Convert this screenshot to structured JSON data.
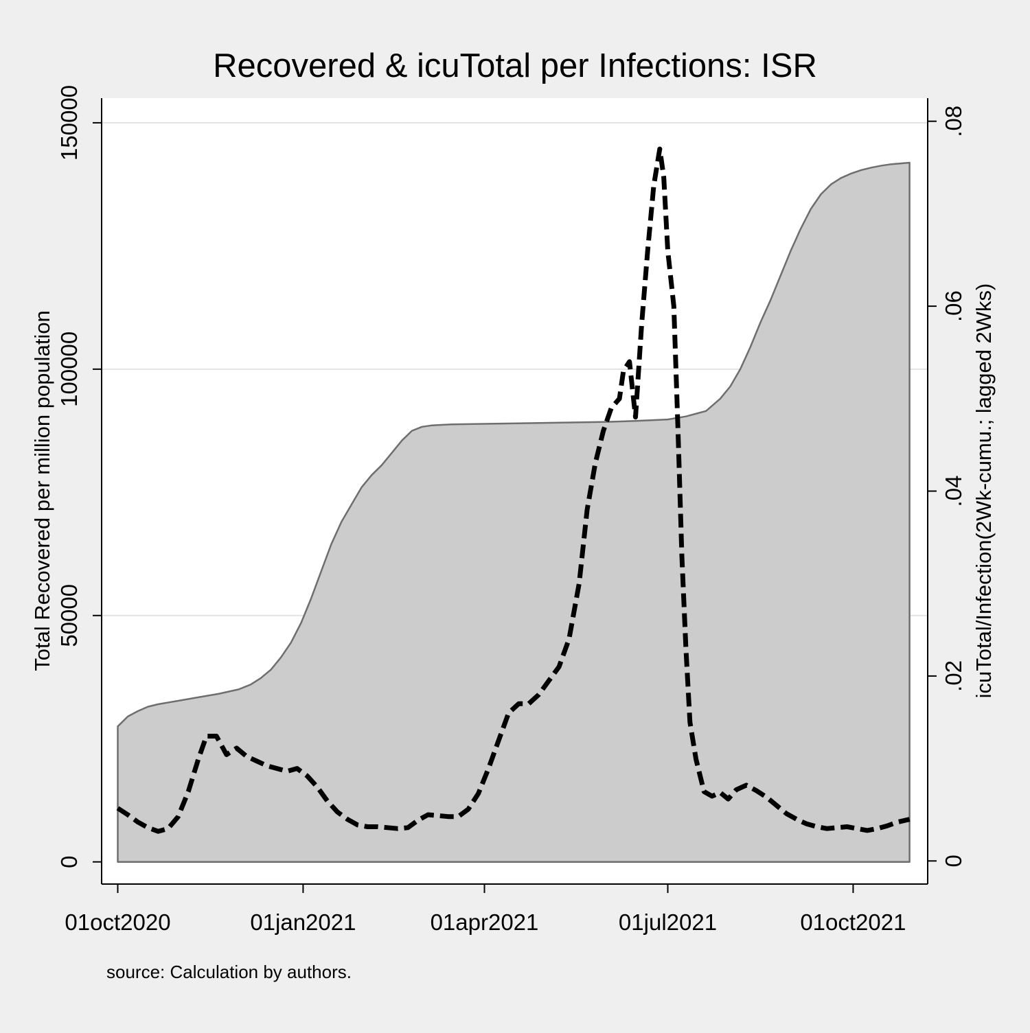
{
  "chart_data": {
    "type": "area",
    "title": "Recovered & icuTotal per Infections: ISR",
    "note": "source: Calculation by authors.",
    "xaxis": {
      "ticks": [
        "2020-10-01",
        "2021-01-01",
        "2021-04-01",
        "2021-07-01",
        "2021-10-01"
      ],
      "tick_labels": [
        "01oct2020",
        "01jan2021",
        "01apr2021",
        "01jul2021",
        "01oct2021"
      ],
      "range": [
        "2020-09-23",
        "2021-11-07"
      ]
    },
    "yaxis_left": {
      "label": "Total Recovered per million population",
      "ticks": [
        0,
        50000,
        100000,
        150000
      ],
      "tick_labels": [
        "0",
        "50000",
        "100000",
        "150000"
      ],
      "range": [
        -4500,
        155000
      ]
    },
    "yaxis_right": {
      "label": "icuTotal/Infection(2Wk-cumu.; lagged 2Wks)",
      "ticks": [
        0,
        0.02,
        0.04,
        0.06,
        0.08
      ],
      "tick_labels": [
        "0",
        ".02",
        ".04",
        ".06",
        ".08"
      ],
      "range": [
        -0.0025,
        0.0825
      ]
    },
    "grid": true,
    "colors": {
      "area_fill": "#cccccc",
      "area_line": "#6e6e6e",
      "dash_line": "#000000",
      "grid": "#e3e3e3"
    },
    "series": [
      {
        "kind": "area",
        "axis": "left",
        "points": [
          [
            "2020-10-01",
            27500
          ],
          [
            "2020-10-06",
            29500
          ],
          [
            "2020-10-11",
            30600
          ],
          [
            "2020-10-16",
            31500
          ],
          [
            "2020-10-21",
            32000
          ],
          [
            "2020-10-31",
            32700
          ],
          [
            "2020-11-10",
            33400
          ],
          [
            "2020-11-20",
            34100
          ],
          [
            "2020-11-30",
            35000
          ],
          [
            "2020-12-06",
            36000
          ],
          [
            "2020-12-11",
            37300
          ],
          [
            "2020-12-16",
            39000
          ],
          [
            "2020-12-21",
            41500
          ],
          [
            "2020-12-26",
            44500
          ],
          [
            "2020-12-31",
            48500
          ],
          [
            "2021-01-05",
            53500
          ],
          [
            "2021-01-10",
            59000
          ],
          [
            "2021-01-15",
            64500
          ],
          [
            "2021-01-20",
            69000
          ],
          [
            "2021-01-25",
            72500
          ],
          [
            "2021-01-30",
            76000
          ],
          [
            "2021-02-04",
            78500
          ],
          [
            "2021-02-09",
            80500
          ],
          [
            "2021-02-14",
            83000
          ],
          [
            "2021-02-19",
            85500
          ],
          [
            "2021-02-24",
            87500
          ],
          [
            "2021-03-01",
            88300
          ],
          [
            "2021-03-06",
            88600
          ],
          [
            "2021-03-16",
            88800
          ],
          [
            "2021-04-01",
            88900
          ],
          [
            "2021-05-01",
            89100
          ],
          [
            "2021-06-01",
            89300
          ],
          [
            "2021-06-15",
            89500
          ],
          [
            "2021-07-01",
            89800
          ],
          [
            "2021-07-10",
            90400
          ],
          [
            "2021-07-20",
            91500
          ],
          [
            "2021-07-27",
            94000
          ],
          [
            "2021-08-01",
            96500
          ],
          [
            "2021-08-06",
            100000
          ],
          [
            "2021-08-11",
            104500
          ],
          [
            "2021-08-16",
            109500
          ],
          [
            "2021-08-21",
            114000
          ],
          [
            "2021-08-26",
            119000
          ],
          [
            "2021-08-31",
            124000
          ],
          [
            "2021-09-05",
            128500
          ],
          [
            "2021-09-10",
            132500
          ],
          [
            "2021-09-15",
            135500
          ],
          [
            "2021-09-20",
            137500
          ],
          [
            "2021-09-25",
            138800
          ],
          [
            "2021-09-30",
            139700
          ],
          [
            "2021-10-05",
            140400
          ],
          [
            "2021-10-10",
            140900
          ],
          [
            "2021-10-15",
            141300
          ],
          [
            "2021-10-20",
            141600
          ],
          [
            "2021-10-29",
            141900
          ]
        ]
      },
      {
        "kind": "line",
        "style": "dashed",
        "axis": "right",
        "points": [
          [
            "2020-10-01",
            0.0057
          ],
          [
            "2020-10-06",
            0.005
          ],
          [
            "2020-10-11",
            0.0042
          ],
          [
            "2020-10-16",
            0.0036
          ],
          [
            "2020-10-21",
            0.0032
          ],
          [
            "2020-10-26",
            0.0035
          ],
          [
            "2020-10-31",
            0.0048
          ],
          [
            "2020-11-05",
            0.0075
          ],
          [
            "2020-11-10",
            0.011
          ],
          [
            "2020-11-14",
            0.0135
          ],
          [
            "2020-11-19",
            0.0135
          ],
          [
            "2020-11-24",
            0.0115
          ],
          [
            "2020-11-29",
            0.0122
          ],
          [
            "2020-12-04",
            0.0113
          ],
          [
            "2020-12-09",
            0.0108
          ],
          [
            "2020-12-14",
            0.0103
          ],
          [
            "2020-12-19",
            0.01
          ],
          [
            "2020-12-24",
            0.0097
          ],
          [
            "2020-12-29",
            0.01
          ],
          [
            "2021-01-03",
            0.0092
          ],
          [
            "2021-01-08",
            0.008
          ],
          [
            "2021-01-13",
            0.0065
          ],
          [
            "2021-01-18",
            0.0053
          ],
          [
            "2021-01-23",
            0.0045
          ],
          [
            "2021-01-28",
            0.0039
          ],
          [
            "2021-02-02",
            0.0037
          ],
          [
            "2021-02-07",
            0.0037
          ],
          [
            "2021-02-12",
            0.0036
          ],
          [
            "2021-02-17",
            0.0035
          ],
          [
            "2021-02-22",
            0.0036
          ],
          [
            "2021-02-27",
            0.0044
          ],
          [
            "2021-03-04",
            0.005
          ],
          [
            "2021-03-09",
            0.0049
          ],
          [
            "2021-03-14",
            0.0048
          ],
          [
            "2021-03-19",
            0.0048
          ],
          [
            "2021-03-24",
            0.0056
          ],
          [
            "2021-03-29",
            0.0073
          ],
          [
            "2021-04-03",
            0.01
          ],
          [
            "2021-04-08",
            0.013
          ],
          [
            "2021-04-13",
            0.016
          ],
          [
            "2021-04-18",
            0.017
          ],
          [
            "2021-04-23",
            0.017
          ],
          [
            "2021-04-28",
            0.018
          ],
          [
            "2021-05-03",
            0.0195
          ],
          [
            "2021-05-08",
            0.021
          ],
          [
            "2021-05-13",
            0.024
          ],
          [
            "2021-05-18",
            0.03
          ],
          [
            "2021-05-22",
            0.038
          ],
          [
            "2021-05-26",
            0.043
          ],
          [
            "2021-05-30",
            0.0465
          ],
          [
            "2021-06-03",
            0.049
          ],
          [
            "2021-06-07",
            0.05
          ],
          [
            "2021-06-09",
            0.053
          ],
          [
            "2021-06-12",
            0.054
          ],
          [
            "2021-06-15",
            0.048
          ],
          [
            "2021-06-18",
            0.058
          ],
          [
            "2021-06-21",
            0.066
          ],
          [
            "2021-06-24",
            0.073
          ],
          [
            "2021-06-27",
            0.077
          ],
          [
            "2021-06-29",
            0.074
          ],
          [
            "2021-07-01",
            0.066
          ],
          [
            "2021-07-04",
            0.06
          ],
          [
            "2021-07-06",
            0.047
          ],
          [
            "2021-07-08",
            0.033
          ],
          [
            "2021-07-10",
            0.023
          ],
          [
            "2021-07-12",
            0.015
          ],
          [
            "2021-07-15",
            0.011
          ],
          [
            "2021-07-19",
            0.0075
          ],
          [
            "2021-07-23",
            0.007
          ],
          [
            "2021-07-27",
            0.0074
          ],
          [
            "2021-07-31",
            0.0067
          ],
          [
            "2021-08-04",
            0.0077
          ],
          [
            "2021-08-09",
            0.0082
          ],
          [
            "2021-08-14",
            0.0076
          ],
          [
            "2021-08-19",
            0.0069
          ],
          [
            "2021-08-24",
            0.006
          ],
          [
            "2021-08-29",
            0.0051
          ],
          [
            "2021-09-03",
            0.0045
          ],
          [
            "2021-09-08",
            0.004
          ],
          [
            "2021-09-13",
            0.0037
          ],
          [
            "2021-09-18",
            0.0035
          ],
          [
            "2021-09-23",
            0.0036
          ],
          [
            "2021-09-28",
            0.0037
          ],
          [
            "2021-10-03",
            0.0035
          ],
          [
            "2021-10-08",
            0.0033
          ],
          [
            "2021-10-13",
            0.0035
          ],
          [
            "2021-10-18",
            0.0038
          ],
          [
            "2021-10-23",
            0.0042
          ],
          [
            "2021-10-29",
            0.0045
          ]
        ]
      }
    ]
  }
}
